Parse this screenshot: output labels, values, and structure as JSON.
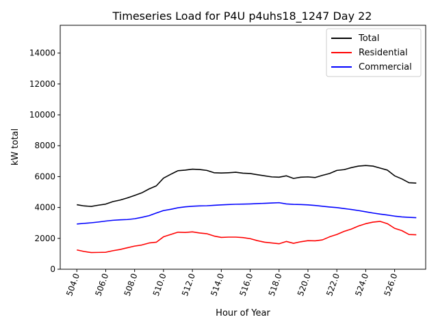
{
  "chart_data": {
    "type": "line",
    "title": "Timeseries Load for P4U p4uhs18_1247  Day 22",
    "xlabel": "Hour of Year",
    "ylabel": "kW total",
    "xlim": [
      502.85,
      528.15
    ],
    "ylim": [
      0,
      15800
    ],
    "xticks": [
      504,
      506,
      508,
      510,
      512,
      514,
      516,
      518,
      520,
      522,
      524,
      526
    ],
    "xtick_labels": [
      "504.0",
      "506.0",
      "508.0",
      "510.0",
      "512.0",
      "514.0",
      "516.0",
      "518.0",
      "520.0",
      "522.0",
      "524.0",
      "526.0"
    ],
    "yticks": [
      0,
      2000,
      4000,
      6000,
      8000,
      10000,
      12000,
      14000
    ],
    "ytick_labels": [
      "0",
      "2000",
      "4000",
      "6000",
      "8000",
      "10000",
      "12000",
      "14000"
    ],
    "legend_position": "top-right",
    "x": [
      504.0,
      504.5,
      505.0,
      505.5,
      506.0,
      506.5,
      507.0,
      507.5,
      508.0,
      508.5,
      509.0,
      509.5,
      510.0,
      510.5,
      511.0,
      511.5,
      512.0,
      512.5,
      513.0,
      513.5,
      514.0,
      514.5,
      515.0,
      515.5,
      516.0,
      516.5,
      517.0,
      517.5,
      518.0,
      518.5,
      519.0,
      519.5,
      520.0,
      520.5,
      521.0,
      521.5,
      522.0,
      522.5,
      523.0,
      523.5,
      524.0,
      524.5,
      525.0,
      525.5,
      526.0,
      526.5,
      527.0,
      527.5
    ],
    "series": [
      {
        "name": "Total",
        "color": "#000000",
        "values": [
          4180,
          4100,
          4070,
          4150,
          4220,
          4380,
          4480,
          4620,
          4780,
          4950,
          5200,
          5400,
          5900,
          6150,
          6380,
          6420,
          6480,
          6460,
          6400,
          6250,
          6230,
          6250,
          6280,
          6220,
          6200,
          6120,
          6050,
          5980,
          5960,
          6050,
          5880,
          5960,
          5980,
          5940,
          6080,
          6200,
          6400,
          6450,
          6580,
          6680,
          6720,
          6680,
          6550,
          6420,
          6050,
          5850,
          5600,
          5580
        ]
      },
      {
        "name": "Residential",
        "color": "#ff0000",
        "values": [
          1250,
          1150,
          1080,
          1090,
          1100,
          1200,
          1280,
          1390,
          1500,
          1570,
          1700,
          1750,
          2100,
          2250,
          2400,
          2380,
          2420,
          2350,
          2300,
          2150,
          2060,
          2080,
          2080,
          2050,
          1980,
          1850,
          1750,
          1700,
          1650,
          1800,
          1680,
          1780,
          1850,
          1840,
          1900,
          2100,
          2250,
          2450,
          2600,
          2800,
          2950,
          3050,
          3100,
          2950,
          2650,
          2500,
          2250,
          2230
        ]
      },
      {
        "name": "Commercial",
        "color": "#0000ff",
        "values": [
          2930,
          2970,
          3010,
          3060,
          3120,
          3170,
          3200,
          3220,
          3270,
          3360,
          3470,
          3640,
          3800,
          3880,
          3980,
          4040,
          4080,
          4100,
          4110,
          4140,
          4170,
          4190,
          4210,
          4220,
          4230,
          4250,
          4270,
          4290,
          4310,
          4230,
          4200,
          4190,
          4170,
          4130,
          4080,
          4030,
          3990,
          3930,
          3870,
          3800,
          3720,
          3640,
          3570,
          3510,
          3440,
          3390,
          3360,
          3340
        ]
      }
    ]
  }
}
